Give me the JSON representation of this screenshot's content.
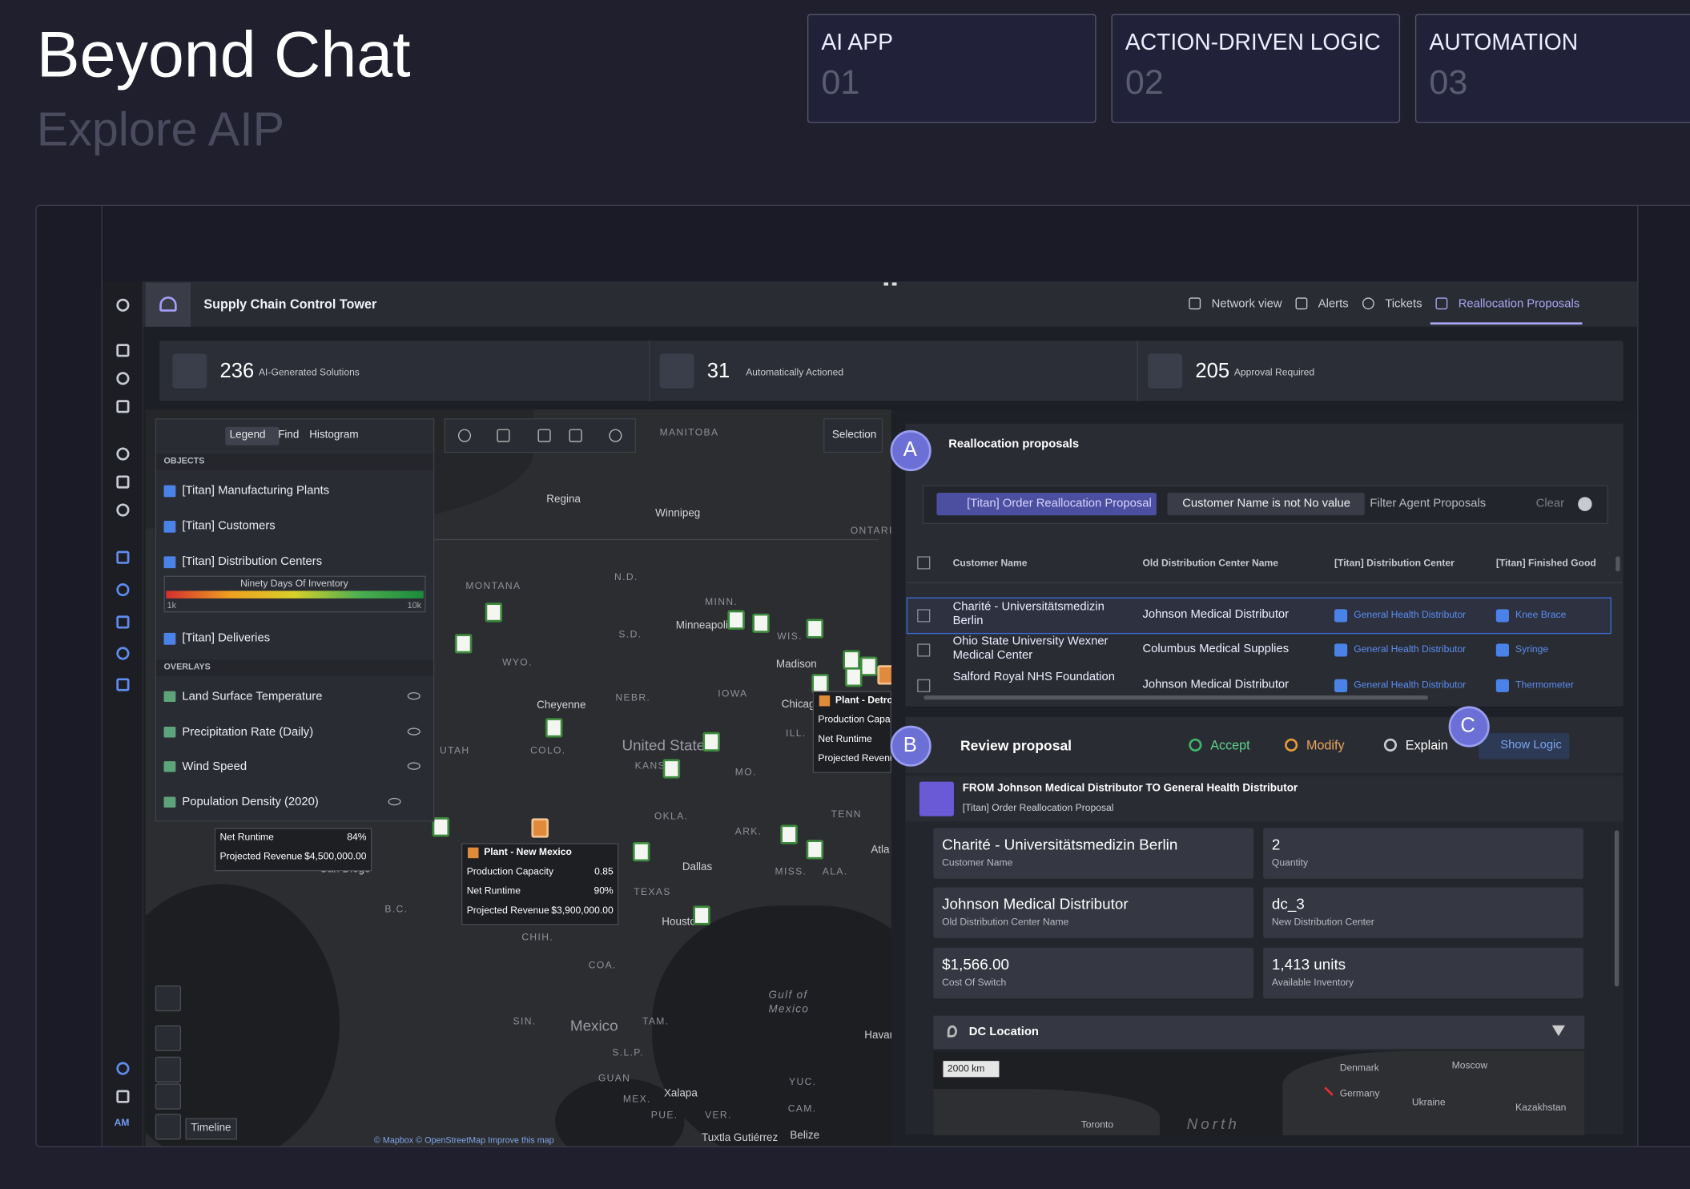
{
  "header": {
    "title": "Beyond Chat",
    "subtitle": "Explore AIP"
  },
  "tabs": [
    {
      "label": "AI APP",
      "number": "01"
    },
    {
      "label": "ACTION-DRIVEN LOGIC",
      "number": "02"
    },
    {
      "label": "AUTOMATION",
      "number": "03"
    }
  ],
  "app": {
    "title": "Supply Chain Control Tower",
    "nav": [
      "Network view",
      "Alerts",
      "Tickets",
      "Reallocation Proposals"
    ],
    "user": "AM",
    "stats": [
      {
        "value": 236,
        "label": "AI-Generated Solutions"
      },
      {
        "value": 31,
        "label": "Automatically Actioned"
      },
      {
        "value": 205,
        "label": "Approval Required"
      }
    ]
  },
  "legend": {
    "tabs": [
      "Legend",
      "Find",
      "Histogram"
    ],
    "objects_heading": "OBJECTS",
    "objects": [
      "[Titan] Manufacturing Plants",
      "[Titan] Customers",
      "[Titan] Distribution Centers",
      "[Titan] Deliveries"
    ],
    "gradient": {
      "label": "Ninety Days Of Inventory",
      "min": "1k",
      "max": "10k"
    },
    "overlays_heading": "OVERLAYS",
    "overlays": [
      "Land Surface Temperature",
      "Precipitation Rate (Daily)",
      "Wind Speed",
      "Population Density (2020)"
    ]
  },
  "map": {
    "selection": "Selection",
    "timeline": "Timeline",
    "attribution": "© Mapbox © OpenStreetMap Improve this map",
    "labels": [
      "MANITOBA",
      "Regina",
      "Winnipeg",
      "ONTARIO",
      "MONTANA",
      "N.D.",
      "MINN.",
      "Minneapolis",
      "WIS.",
      "Madison",
      "S.D.",
      "WYO.",
      "IOWA",
      "NEBR.",
      "Cheyenne",
      "Chicag",
      "UTAH",
      "COLO.",
      "United States",
      "KANS",
      "MO.",
      "ILL.",
      "TENN",
      "OKLA.",
      "ARK.",
      "TEXAS",
      "Dallas",
      "MISS.",
      "ALA.",
      "Atla",
      "San Diego",
      "Housto",
      "CHIH.",
      "COA.",
      "Gulf of",
      "Mexico",
      "B.C.",
      "SIN.",
      "Mexico",
      "TAM.",
      "S.L.P.",
      "Havan",
      "GUAN",
      "MEX.",
      "YUC.",
      "Xalapa",
      "PUE.",
      "VER.",
      "CAM.",
      "Tuxtla Gutiérrez",
      "Belize"
    ],
    "popups": [
      {
        "title": "Plant - New Mexico",
        "rows": [
          {
            "label": "Production Capacity",
            "value": "0.85"
          },
          {
            "label": "Net Runtime",
            "value": "90%"
          },
          {
            "label": "Projected Revenue",
            "value": "$3,900,000.00"
          }
        ]
      },
      {
        "rows": [
          {
            "label": "Net Runtime",
            "value": "84%"
          },
          {
            "label": "Projected Revenue",
            "value": "$4,500,000.00"
          }
        ]
      },
      {
        "title": "Plant - Detro",
        "rows": [
          {
            "label": "Production Capa"
          },
          {
            "label": "Net Runtime"
          },
          {
            "label": "Projected Revenu"
          }
        ]
      }
    ]
  },
  "proposals": {
    "marker": "A",
    "title": "Reallocation proposals",
    "filters": [
      "[Titan] Order Reallocation Proposal",
      "Customer Name is not No value"
    ],
    "filter_placeholder": "Filter Agent Proposals",
    "clear": "Clear",
    "columns": [
      "Customer Name",
      "Old Distribution Center Name",
      "[Titan] Distribution Center",
      "[Titan] Finished Good"
    ],
    "rows": [
      [
        "Charité - Universitätsmedizin Berlin",
        "Johnson Medical Distributor",
        "General Health Distributor",
        "Knee Brace"
      ],
      [
        "Ohio State University Wexner Medical Center",
        "Columbus Medical Supplies",
        "General Health Distributor",
        "Syringe"
      ],
      [
        "Salford Royal NHS Foundation",
        "Johnson Medical Distributor",
        "General Health Distributor",
        "Thermometer"
      ]
    ]
  },
  "review": {
    "marker": "B",
    "title": "Review proposal",
    "actions": [
      "Accept",
      "Modify",
      "Explain"
    ],
    "logic_marker": "C",
    "show_logic": "Show Logic",
    "from": "FROM Johnson Medical Distributor TO General Health Distributor",
    "from_subtitle": "[Titan] Order Reallocation Proposal",
    "fields": [
      {
        "value": "Charité - Universitätsmedizin Berlin",
        "label": "Customer Name"
      },
      {
        "value": "2",
        "label": "Quantity"
      },
      {
        "value": "Johnson Medical Distributor",
        "label": "Old Distribution Center Name"
      },
      {
        "value": "dc_3",
        "label": "New Distribution Center"
      },
      {
        "value": "$1,566.00",
        "label": "Cost Of Switch"
      },
      {
        "value": "1,413 units",
        "label": "Available Inventory"
      }
    ],
    "dc_location": "DC Location",
    "scale": "2000 km",
    "map_labels": [
      "Denmark",
      "Moscow",
      "Germany",
      "Ukraine",
      "Kazakhstan",
      "Toronto",
      "North"
    ]
  }
}
